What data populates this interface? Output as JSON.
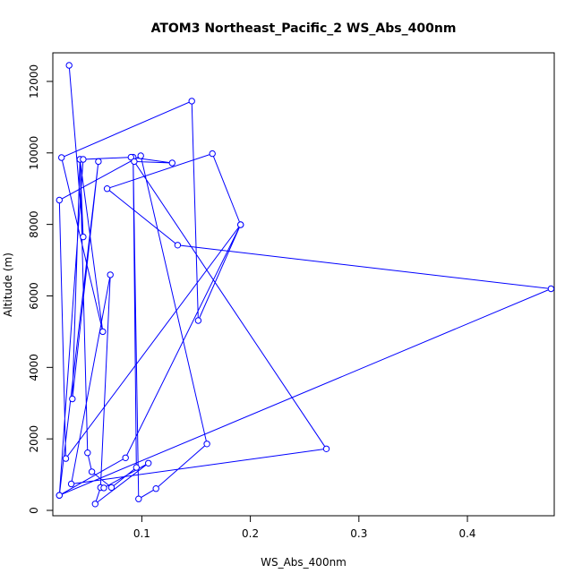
{
  "chart_data": {
    "type": "line",
    "title": "ATOM3 Northeast_Pacific_2 WS_Abs_400nm",
    "xlabel": "WS_Abs_400nm",
    "ylabel": "Altitude (m)",
    "xlim": [
      0.018,
      0.48
    ],
    "ylim": [
      -150,
      12800
    ],
    "xticks": [
      0.1,
      0.2,
      0.3,
      0.4
    ],
    "xtick_labels": [
      "0.1",
      "0.2",
      "0.3",
      "0.4"
    ],
    "yticks": [
      0,
      2000,
      4000,
      6000,
      8000,
      10000,
      12000
    ],
    "ytick_labels": [
      "0",
      "2000",
      "4000",
      "6000",
      "8000",
      "10000",
      "12000"
    ],
    "grid": false,
    "legend": "none",
    "color": "#0000ff",
    "marker": "open-circle",
    "series": [
      {
        "x": [
          0.033,
          0.046,
          0.043,
          0.05,
          0.054,
          0.072,
          0.095,
          0.092,
          0.097,
          0.113,
          0.16,
          0.099,
          0.024,
          0.03,
          0.191,
          0.165,
          0.068,
          0.133,
          0.477,
          0.024,
          0.06,
          0.036,
          0.043,
          0.064,
          0.026,
          0.146,
          0.152,
          0.191,
          0.085,
          0.024,
          0.046,
          0.09,
          0.128,
          0.093,
          0.27,
          0.035,
          0.071,
          0.062,
          0.057,
          0.106,
          0.065
        ],
        "y": [
          12450,
          7650,
          9820,
          1610,
          1080,
          640,
          1200,
          9880,
          320,
          610,
          1860,
          9920,
          8680,
          1450,
          7990,
          9980,
          9000,
          7420,
          6200,
          420,
          9760,
          3120,
          9820,
          5000,
          9870,
          11450,
          5310,
          7990,
          1470,
          420,
          9820,
          9880,
          9720,
          9760,
          1720,
          740,
          6590,
          640,
          180,
          1320,
          630
        ]
      }
    ]
  }
}
